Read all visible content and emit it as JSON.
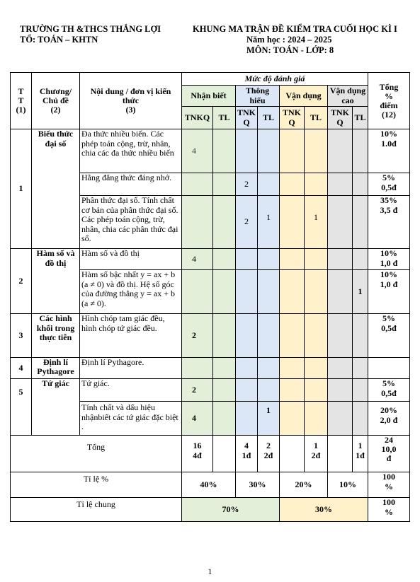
{
  "header": {
    "school": "TRƯỜNG TH &THCS THẮNG LỢI",
    "department": "TỔ: TOÁN – KHTN",
    "title": "KHUNG MA TRẬN ĐỀ KIỂM TRA CUỐI HỌC KÌ I",
    "year": "Năm học : 2024 – 2025",
    "subject": "MÔN: TOÁN  - LỚP: 8"
  },
  "table": {
    "h_tt": "T\nT\n(1)",
    "h_chapter": "Chương/\nChủ đề\n(2)",
    "h_content": "Nội dung / đơn vị kiến thức\n(3)",
    "h_level": "Mức độ đánh giá",
    "h_total": "Tổng\n%\nđiểm\n(12)",
    "h_nb": "Nhận biết",
    "h_th": "Thông hiểu",
    "h_vd": "Vận dụng",
    "h_vdc": "Vận dụng cao",
    "h_tnkq": "TNKQ",
    "h_tnkq_split": "TNK\nQ",
    "h_tl": "TL",
    "rows": [
      {
        "tt": "1",
        "chapter": "Biểu thức đại số",
        "content": "Đa thức nhiều biến. Các phép toán cộng, trừ, nhân, chia các đa thức nhiều biến",
        "nb_tnkq": "4",
        "th_tnkq": "",
        "th_tl": "",
        "vd_tl": "",
        "vdc_tl": "",
        "total": "10%\n1.0đ"
      },
      {
        "content": "Hằng đẳng thức đáng nhớ.",
        "nb_tnkq": "",
        "th_tnkq": "2",
        "th_tl": "",
        "vd_tl": "",
        "vdc_tl": "",
        "total": "5%\n0,5đ"
      },
      {
        "content": "Phân thức đại số. Tính chất cơ bản của phân thức đại số. Các phép toán cộng, trừ, nhân, chia các phân thức đại số.",
        "nb_tnkq": "",
        "th_tnkq": "2",
        "th_tl": "1",
        "vd_tl": "1",
        "vdc_tl": "",
        "total": "35%\n3,5 đ"
      },
      {
        "tt": "2",
        "chapter": "Hàm số và đồ thị",
        "content": "Hàm số và đồ thị",
        "nb_tnkq": "4",
        "th_tnkq": "",
        "th_tl": "",
        "vd_tl": "",
        "vdc_tl": "",
        "total": "10%\n1,0 đ"
      },
      {
        "content": "Hàm số bậc nhất y = ax + b (a ≠ 0) và đồ thị. Hệ số góc của đường thẳng y = ax + b (a ≠ 0).",
        "nb_tnkq": "",
        "th_tnkq": "",
        "th_tl": "",
        "vd_tl": "",
        "vdc_tl": "1",
        "total": "10%\n1,0 đ"
      },
      {
        "tt": "3",
        "chapter": "Các hình khối trong thực tiễn",
        "content": "Hình chóp tam giác đều, hình chóp tứ giác đều.",
        "nb_tnkq": "2",
        "th_tnkq": "",
        "th_tl": "",
        "vd_tl": "",
        "vdc_tl": "",
        "total": "5%\n0,5đ"
      },
      {
        "tt": "4",
        "chapter": "Định lí Pythagore",
        "content": "Định lí Pythagore.",
        "nb_tnkq": "",
        "th_tnkq": "",
        "th_tl": "",
        "vd_tl": "",
        "vdc_tl": "",
        "total": ""
      },
      {
        "tt": "5",
        "chapter": "Tứ giác",
        "content": "Tứ giác.",
        "nb_tnkq": "2",
        "th_tnkq": "",
        "th_tl": "",
        "vd_tl": "",
        "vdc_tl": "",
        "total": "5%\n0,5đ"
      },
      {
        "content": "Tính chất và dấu hiệu nhậnbiết các tứ giác đặc biệt .",
        "nb_tnkq": "4",
        "th_tnkq": "",
        "th_tl": "1",
        "vd_tl": "",
        "vdc_tl": "",
        "total": "20%\n2,0 đ"
      }
    ],
    "total_row": {
      "label": "Tổng",
      "nb": "16\n4đ",
      "th_tnkq": "4\n1đ",
      "th_tl": "2\n2đ",
      "vd_tl": "1\n2đ",
      "vdc_tl": "1\n1đ",
      "total": "24\n10,0\nđ"
    },
    "ratio_row": {
      "label": "Tỉ lệ %",
      "nb": "40%",
      "th": "30%",
      "vd": "20%",
      "vdc": "10%",
      "total": "100\n%"
    },
    "common_row": {
      "label": "Tỉ lệ chung",
      "low": "70%",
      "high": "30%",
      "total": "100\n%"
    }
  },
  "page_number": "1",
  "colors": {
    "green": "#e2f0d9",
    "blue": "#dbe6f6",
    "yellow": "#fff1c9",
    "gray": "#e4e4e4"
  }
}
